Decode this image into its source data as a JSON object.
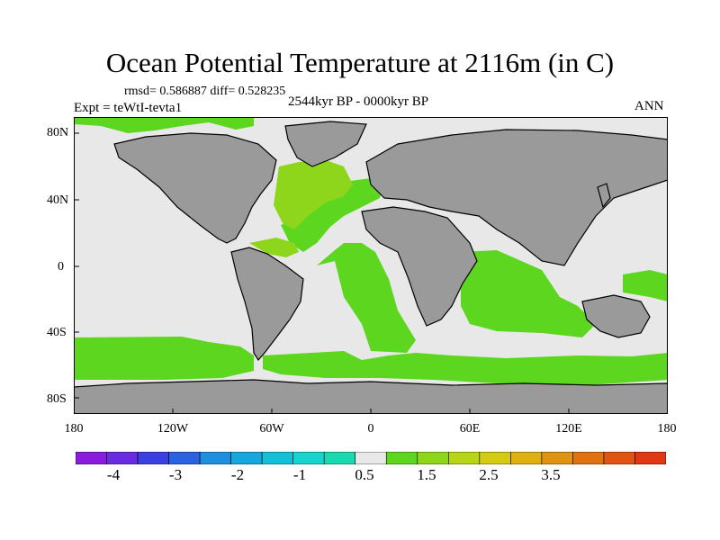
{
  "title": "Ocean Potential Temperature at 2116m (in C)",
  "stats_text": "rmsd= 0.586887 diff= 0.528235",
  "experiment_text": "Expt = teWtI-tevta1",
  "period_text": "2544kyr BP - 0000kyr BP",
  "season_text": "ANN",
  "lat_labels": [
    "80N",
    "40N",
    "0",
    "40S",
    "80S"
  ],
  "lon_labels": [
    "180",
    "120W",
    "60W",
    "0",
    "60E",
    "120E",
    "180"
  ],
  "colorbar": {
    "colors": [
      "#8a1cde",
      "#6a2ce0",
      "#3a3fe0",
      "#2a62e0",
      "#1e8ede",
      "#17a6de",
      "#16bfd8",
      "#18d4cc",
      "#1ad8b0",
      "#e8e8e8",
      "#5cd61e",
      "#8ed61c",
      "#b8d418",
      "#d4cc14",
      "#e0b012",
      "#e09212",
      "#e07212",
      "#e05412",
      "#e03812"
    ],
    "labels": [
      "-4",
      "-3",
      "-2",
      "-1",
      "0.5",
      "1.5",
      "2.5",
      "3.5"
    ]
  },
  "map_colors": {
    "land": "#9a9a9a",
    "ocean_positive": "#5cd61e",
    "ocean_warm": "#8ed61c",
    "ocean_neutral": "#e8e8e8",
    "ocean_cool": "#18d4cc"
  }
}
